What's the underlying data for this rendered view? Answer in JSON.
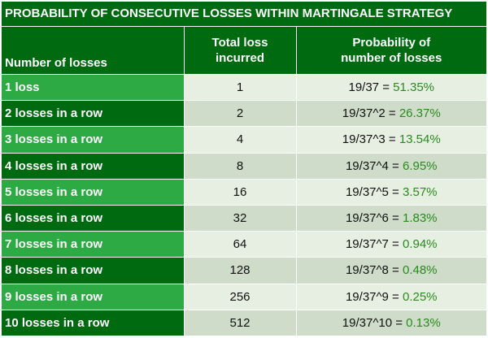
{
  "title": "PROBABILITY OF CONSECUTIVE LOSSES WITHIN MARTINGALE STRATEGY",
  "headers": {
    "col1": "Number of losses",
    "col2_line1": "Total loss",
    "col2_line2": "incurred",
    "col3_line1": "Probability of",
    "col3_line2": "number of losses"
  },
  "rows": [
    {
      "label": "1 loss",
      "total": "1",
      "formula": "19/37 = ",
      "percent": "51.35%"
    },
    {
      "label": "2 losses in a row",
      "total": "2",
      "formula": "19/37^2 = ",
      "percent": "26.37%"
    },
    {
      "label": "3 losses in a row",
      "total": "4",
      "formula": "19/37^3 = ",
      "percent": "13.54%"
    },
    {
      "label": "4 losses in a row",
      "total": "8",
      "formula": "19/37^4 = ",
      "percent": "6.95%"
    },
    {
      "label": "5 losses in a row",
      "total": "16",
      "formula": "19/37^5 = ",
      "percent": "3.57%"
    },
    {
      "label": "6 losses in a row",
      "total": "32",
      "formula": "19/37^6 = ",
      "percent": "1.83%"
    },
    {
      "label": "7 losses in a row",
      "total": "64",
      "formula": "19/37^7 = ",
      "percent": "0.94%"
    },
    {
      "label": "8 losses in a row",
      "total": "128",
      "formula": "19/37^8 = ",
      "percent": "0.48%"
    },
    {
      "label": "9 losses in a row",
      "total": "256",
      "formula": "19/37^9 = ",
      "percent": "0.25%"
    },
    {
      "label": "10 losses in a row",
      "total": "512",
      "formula": "19/37^10 = ",
      "percent": "0.13%"
    }
  ],
  "colors": {
    "header_dark_green": "#006a10",
    "label_light_green": "#2eaa44",
    "cell_light": "#e7efe3",
    "cell_dark": "#cfdcc9",
    "percent_text": "#2a8a1e"
  }
}
